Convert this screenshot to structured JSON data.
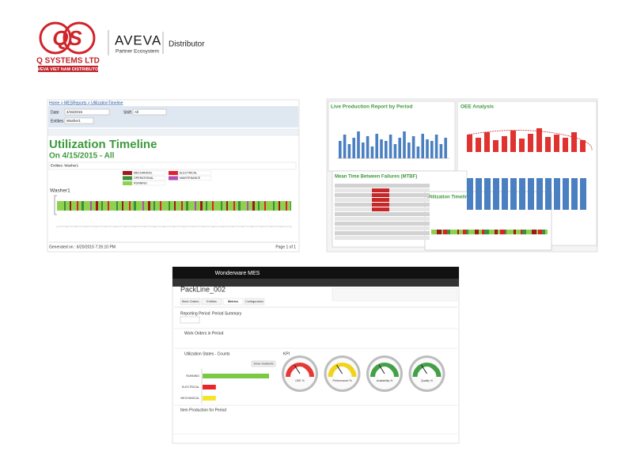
{
  "logo": {
    "mark": "QS",
    "company": "Q SYSTEMS LTD",
    "tagline": "AVEVA VIET NAM DISTRIBUTOR"
  },
  "partner": {
    "brand": "AVEVA",
    "program": "Partner Ecosystem",
    "role": "Distributor"
  },
  "report": {
    "breadcrumb": "Home > MESReports > UtilizationTimeline",
    "date_label": "Date",
    "date": "4/15/2015",
    "shift_label": "Shift",
    "shift": "All",
    "entities_label": "Entities",
    "entity": "Washer1",
    "title": "Utilization Timeline",
    "subtitle": "On 4/15/2015 - All",
    "entities_line": "Entities: Washer1",
    "legend": [
      "MECHANICAL",
      "ELECTRICAL",
      "OPERATIONAL",
      "MAINTENANCE",
      "RUNNING"
    ],
    "legend_colors": [
      "#9b1b1b",
      "#e0202a",
      "#3a8f3a",
      "#b04fb0",
      "#8fd14f"
    ],
    "row_label": "Washer1",
    "generated": "Generated on : 6/20/2015 7:26:10 PM",
    "page": "Page 1 of 1"
  },
  "collage": {
    "production_title": "Live Production Report by Period",
    "oee_title": "OEE Analysis",
    "mtbf_title": "Mean Time Between Failures (MTBF)",
    "timeline_title": "Utilization Timeline"
  },
  "mes": {
    "app": "Wonderware MES",
    "entity": "PackLine_002",
    "tabs": [
      "Work Orders",
      "Entities",
      "Metrics",
      "Configuration"
    ],
    "reporting_period": "Reporting Period",
    "period_summary": "Period Summary",
    "work_orders": "Work Orders in Period",
    "utilization_title": "Utilization States - Counts",
    "kpi": "KPI",
    "show_gradients": "Show Gradients",
    "states": [
      "RUNNING",
      "ELECTRICAL",
      "MECHANICAL"
    ],
    "state_counts": [
      30,
      6,
      6
    ],
    "state_colors": [
      "#7ac943",
      "#e8262d",
      "#f5e52a"
    ],
    "gauges": [
      "OEE %",
      "Performance %",
      "Availability %",
      "Quality %"
    ],
    "gauge_colors": [
      "#e53935",
      "#f2d31b",
      "#43a047",
      "#43a047"
    ],
    "item_production": "Item Production for Period"
  }
}
